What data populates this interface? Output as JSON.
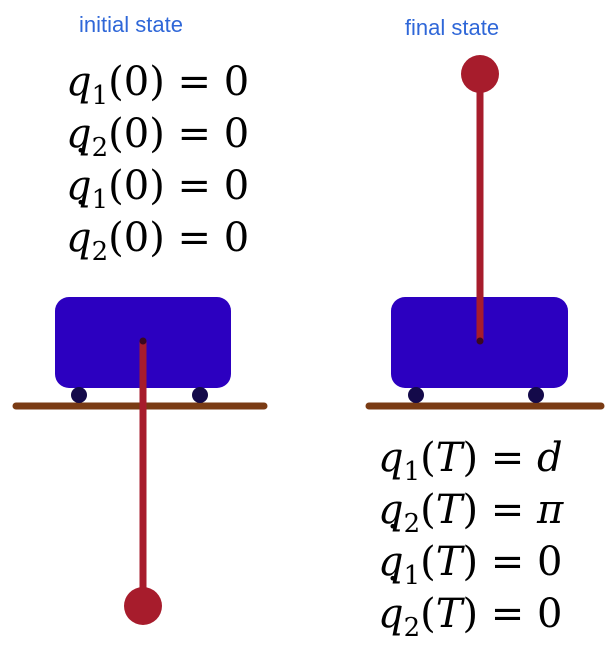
{
  "colors": {
    "title": "#2f67d8",
    "cart": "#2c00c0",
    "wheel": "#140a4a",
    "track": "#7a3b14",
    "pendulum": "#a71c2c",
    "pivot": "#3a0820",
    "equation": "#000000"
  },
  "initial": {
    "title": "initial state",
    "pendulum_orientation": "down",
    "equations": [
      {
        "var": "q",
        "dot": "",
        "sub": "1",
        "arg": "0",
        "arg_italic": false,
        "rhs": "0",
        "rhs_italic": false
      },
      {
        "var": "q",
        "dot": "",
        "sub": "2",
        "arg": "0",
        "arg_italic": false,
        "rhs": "0",
        "rhs_italic": false
      },
      {
        "var": "q",
        "dot": "˙",
        "sub": "1",
        "arg": "0",
        "arg_italic": false,
        "rhs": "0",
        "rhs_italic": false
      },
      {
        "var": "q",
        "dot": "˙",
        "sub": "2",
        "arg": "0",
        "arg_italic": false,
        "rhs": "0",
        "rhs_italic": false
      }
    ]
  },
  "final": {
    "title": "final state",
    "pendulum_orientation": "up",
    "equations": [
      {
        "var": "q",
        "dot": "",
        "sub": "1",
        "arg": "T",
        "arg_italic": true,
        "rhs": "d",
        "rhs_italic": true
      },
      {
        "var": "q",
        "dot": "",
        "sub": "2",
        "arg": "T",
        "arg_italic": true,
        "rhs": "π",
        "rhs_italic": true
      },
      {
        "var": "q",
        "dot": "˙",
        "sub": "1",
        "arg": "T",
        "arg_italic": true,
        "rhs": "0",
        "rhs_italic": false
      },
      {
        "var": "q",
        "dot": "˙",
        "sub": "2",
        "arg": "T",
        "arg_italic": true,
        "rhs": "0",
        "rhs_italic": false
      }
    ]
  }
}
